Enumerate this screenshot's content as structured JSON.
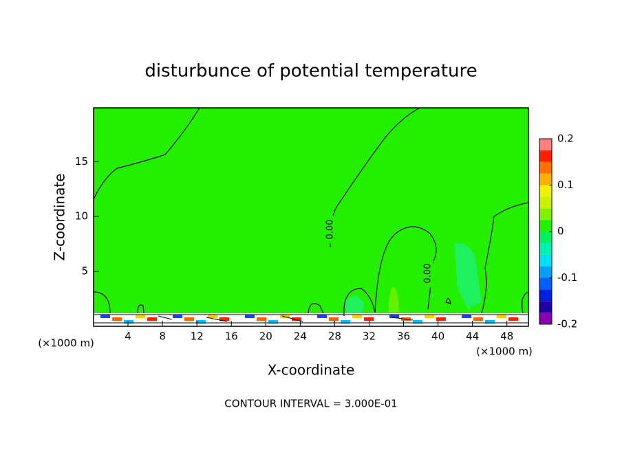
{
  "chart_data": {
    "type": "contour",
    "title": "disturbunce of potential temperature",
    "x_label": "X-coordinate",
    "y_label": "Z-coordinate",
    "x_unit": "(×1000 m)",
    "y_unit": "(×1000 m)",
    "footnote": "CONTOUR INTERVAL = 3.000E-01",
    "xlim": [
      0,
      50.5
    ],
    "xticks": [
      4,
      8,
      12,
      16,
      20,
      24,
      28,
      32,
      36,
      40,
      44,
      48
    ],
    "ylim": [
      0,
      19.9
    ],
    "yticks": [
      5,
      10,
      15
    ],
    "field_color": "#22f000",
    "contour_labels": [
      {
        "value": 0,
        "label": "0.00"
      },
      {
        "value": 0,
        "label": "0.00"
      }
    ],
    "colorbar": {
      "lim": [
        -0.2,
        0.2
      ],
      "ticks": [
        0.2,
        0.1,
        0,
        -0.1,
        -0.2
      ],
      "colors": [
        "#8a00b0",
        "#2000a0",
        "#0020e0",
        "#0060ff",
        "#00a0ff",
        "#00e0f0",
        "#00f0b0",
        "#00f060",
        "#22f000",
        "#80f000",
        "#c8f000",
        "#f0f000",
        "#ffb000",
        "#ff7000",
        "#ff2000",
        "#ff8080"
      ]
    }
  }
}
